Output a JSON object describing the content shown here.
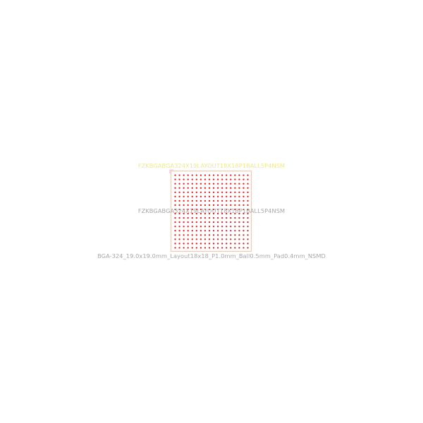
{
  "footprint": {
    "reference_text": "FZKBGABGA324X19LAYOUT18X18P1BALL5P4NSM",
    "value_text": "FZKBGABGA324X19LAYOUT18X18P1BALL5P4NSM",
    "footprint_name": "BGA-324_19.0x19.0mm_Layout18x18_P1.0mm_Ball0.5mm_Pad0.4mm_NSMD",
    "grid_rows": 18,
    "grid_cols": 18,
    "pad_count": 324
  },
  "colors": {
    "background": "#ffffff",
    "pad": "#d42020",
    "courtyard": "#e2cfc0",
    "fab_outline": "#f0a0e0",
    "reference_text": "#eee890",
    "value_text": "#a8a8a8",
    "footprint_text": "#a8a8a8"
  }
}
